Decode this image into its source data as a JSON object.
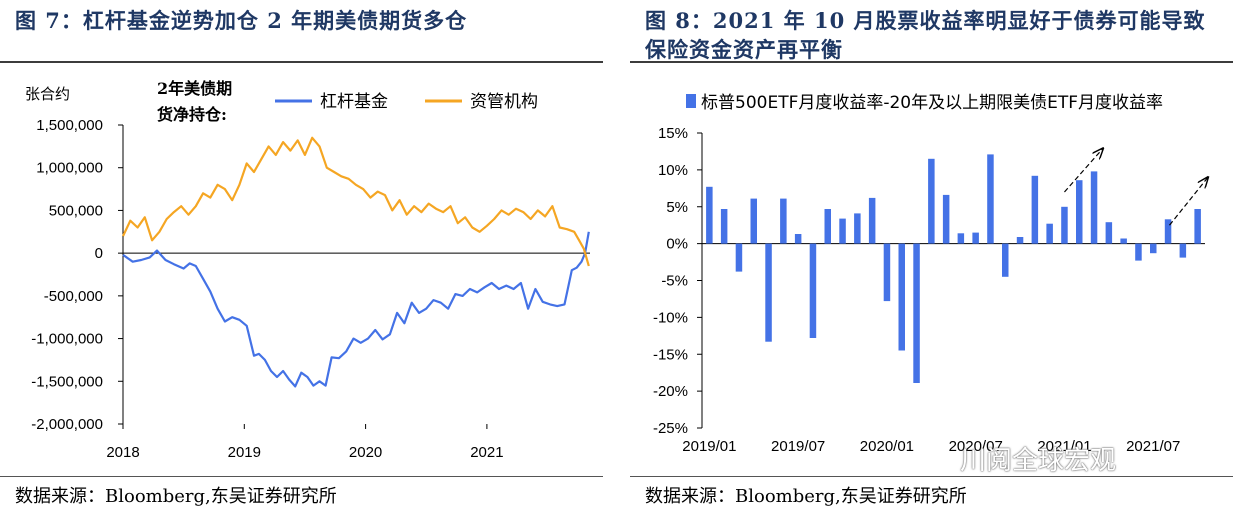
{
  "left": {
    "title": "图 7：杠杆基金逆势加仓 2 年期美债期货多仓",
    "source": "数据来源：Bloomberg,东吴证券研究所",
    "colors": {
      "leveraged": "#4472e6",
      "asset_managers": "#f5a623"
    }
  },
  "right": {
    "title": "图 8：2021 年 10 月股票收益率明显好于债券可能导致保险资金资产再平衡",
    "title_line1": "图 8：2021 年 10 月股票收益率明显好于债券可能导致",
    "title_line2": "保险资金资产再平衡",
    "source": "数据来源：Bloomberg,东吴证券研究所",
    "watermark": "川阅全球宏观",
    "colors": {
      "bar": "#4472e6"
    }
  },
  "chart_data": [
    {
      "type": "line",
      "ylabel": "张合约",
      "annotation": [
        "2年美债期",
        "货净持仓:"
      ],
      "x_range": [
        2018.0,
        2021.85
      ],
      "x_ticks": [
        "2018",
        "2019",
        "2020",
        "2021"
      ],
      "ylim": [
        -2000000,
        1500000
      ],
      "y_ticks": [
        "-2,000,000",
        "-1,500,000",
        "-1,000,000",
        "-500,000",
        "0",
        "500,000",
        "1,000,000",
        "1,500,000"
      ],
      "legend": "top",
      "series": [
        {
          "name": "杠杆基金",
          "x": [
            2018.0,
            2018.08,
            2018.15,
            2018.22,
            2018.28,
            2018.35,
            2018.42,
            2018.5,
            2018.55,
            2018.6,
            2018.66,
            2018.72,
            2018.78,
            2018.84,
            2018.9,
            2018.96,
            2019.02,
            2019.08,
            2019.12,
            2019.17,
            2019.22,
            2019.27,
            2019.32,
            2019.37,
            2019.42,
            2019.47,
            2019.52,
            2019.57,
            2019.62,
            2019.67,
            2019.72,
            2019.78,
            2019.84,
            2019.9,
            2019.96,
            2020.02,
            2020.08,
            2020.14,
            2020.2,
            2020.26,
            2020.32,
            2020.38,
            2020.44,
            2020.5,
            2020.56,
            2020.62,
            2020.68,
            2020.74,
            2020.8,
            2020.86,
            2020.92,
            2020.98,
            2021.04,
            2021.1,
            2021.16,
            2021.22,
            2021.28,
            2021.34,
            2021.4,
            2021.46,
            2021.52,
            2021.58,
            2021.64,
            2021.7,
            2021.74,
            2021.78,
            2021.81,
            2021.84
          ],
          "values": [
            -20000,
            -100000,
            -80000,
            -50000,
            30000,
            -80000,
            -130000,
            -180000,
            -120000,
            -150000,
            -300000,
            -450000,
            -650000,
            -800000,
            -750000,
            -780000,
            -850000,
            -1200000,
            -1180000,
            -1250000,
            -1380000,
            -1450000,
            -1380000,
            -1480000,
            -1560000,
            -1400000,
            -1450000,
            -1550000,
            -1500000,
            -1550000,
            -1220000,
            -1230000,
            -1150000,
            -1000000,
            -1050000,
            -1000000,
            -900000,
            -1010000,
            -950000,
            -700000,
            -820000,
            -580000,
            -700000,
            -650000,
            -550000,
            -580000,
            -650000,
            -480000,
            -500000,
            -420000,
            -460000,
            -400000,
            -350000,
            -420000,
            -380000,
            -420000,
            -350000,
            -650000,
            -420000,
            -570000,
            -600000,
            -620000,
            -600000,
            -200000,
            -170000,
            -100000,
            0,
            250000
          ]
        },
        {
          "name": "资管机构",
          "x": [
            2018.0,
            2018.06,
            2018.12,
            2018.18,
            2018.24,
            2018.3,
            2018.36,
            2018.42,
            2018.48,
            2018.54,
            2018.6,
            2018.66,
            2018.72,
            2018.78,
            2018.84,
            2018.9,
            2018.96,
            2019.02,
            2019.08,
            2019.14,
            2019.2,
            2019.26,
            2019.32,
            2019.38,
            2019.44,
            2019.5,
            2019.56,
            2019.62,
            2019.68,
            2019.74,
            2019.8,
            2019.86,
            2019.92,
            2019.98,
            2020.04,
            2020.1,
            2020.16,
            2020.22,
            2020.28,
            2020.34,
            2020.4,
            2020.46,
            2020.52,
            2020.58,
            2020.64,
            2020.7,
            2020.76,
            2020.82,
            2020.88,
            2020.94,
            2021.0,
            2021.06,
            2021.12,
            2021.18,
            2021.24,
            2021.3,
            2021.36,
            2021.42,
            2021.48,
            2021.54,
            2021.6,
            2021.66,
            2021.72,
            2021.76,
            2021.8,
            2021.84
          ],
          "values": [
            200000,
            380000,
            300000,
            420000,
            150000,
            250000,
            400000,
            480000,
            550000,
            450000,
            550000,
            700000,
            650000,
            800000,
            750000,
            620000,
            800000,
            1050000,
            950000,
            1100000,
            1250000,
            1150000,
            1300000,
            1200000,
            1320000,
            1150000,
            1350000,
            1250000,
            1000000,
            950000,
            900000,
            870000,
            800000,
            750000,
            650000,
            720000,
            680000,
            500000,
            620000,
            450000,
            550000,
            480000,
            580000,
            520000,
            480000,
            550000,
            350000,
            420000,
            300000,
            250000,
            320000,
            400000,
            500000,
            450000,
            520000,
            480000,
            400000,
            500000,
            430000,
            550000,
            300000,
            280000,
            250000,
            150000,
            50000,
            -150000
          ]
        }
      ]
    },
    {
      "type": "bar",
      "ylim": [
        -25,
        15
      ],
      "y_ticks": [
        "-25%",
        "-20%",
        "-15%",
        "-10%",
        "-5%",
        "0%",
        "5%",
        "10%",
        "15%"
      ],
      "x_ticks": [
        "2019/01",
        "2019/07",
        "2020/01",
        "2020/07",
        "2021/01",
        "2021/07"
      ],
      "legend": "top",
      "series": [
        {
          "name": "标普500ETF月度收益率-20年及以上期限美债ETF月度收益率",
          "categories": [
            "2019/01",
            "2019/02",
            "2019/03",
            "2019/04",
            "2019/05",
            "2019/06",
            "2019/07",
            "2019/08",
            "2019/09",
            "2019/10",
            "2019/11",
            "2019/12",
            "2020/01",
            "2020/02",
            "2020/03",
            "2020/04",
            "2020/05",
            "2020/06",
            "2020/07",
            "2020/08",
            "2020/09",
            "2020/10",
            "2020/11",
            "2020/12",
            "2021/01",
            "2021/02",
            "2021/03",
            "2021/04",
            "2021/05",
            "2021/06",
            "2021/07",
            "2021/08",
            "2021/09",
            "2021/10"
          ],
          "values": [
            7.7,
            4.7,
            -3.8,
            6.1,
            -13.3,
            6.1,
            1.3,
            -12.8,
            4.7,
            3.4,
            4.1,
            6.2,
            -7.8,
            -14.5,
            -18.9,
            11.5,
            6.6,
            1.4,
            1.5,
            12.1,
            -4.5,
            0.9,
            9.2,
            2.7,
            5.0,
            8.6,
            9.8,
            2.9,
            0.7,
            -2.3,
            -1.3,
            3.3,
            -1.9,
            4.7
          ]
        }
      ]
    }
  ]
}
